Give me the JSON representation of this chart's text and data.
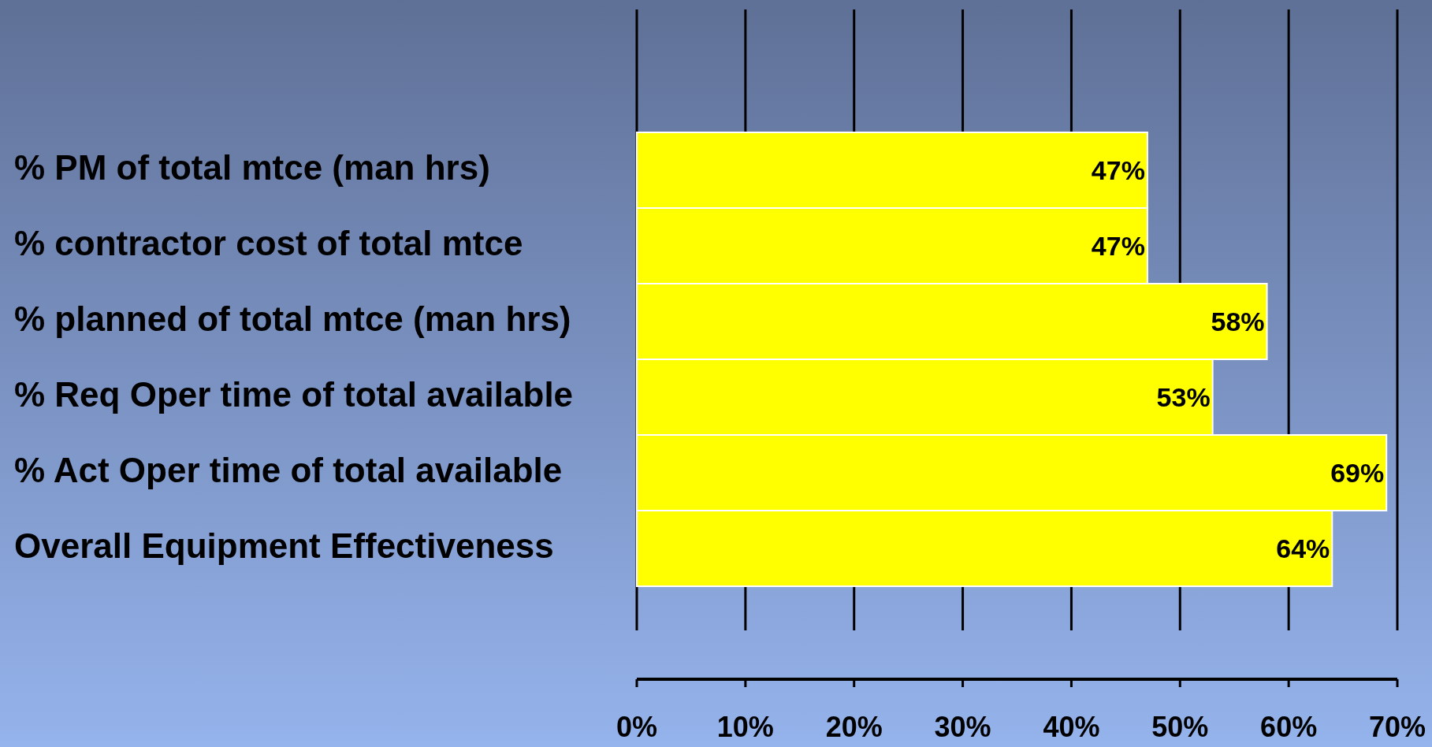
{
  "chart_data": {
    "type": "bar",
    "orientation": "horizontal",
    "categories": [
      "% PM of total mtce (man hrs)",
      "% contractor cost of total mtce",
      "% planned of total mtce (man hrs)",
      "% Req Oper time of total available",
      "% Act Oper time of total available",
      "Overall Equipment Effectiveness"
    ],
    "values": [
      47,
      47,
      58,
      53,
      69,
      64
    ],
    "value_labels": [
      "47%",
      "47%",
      "58%",
      "53%",
      "69%",
      "64%"
    ],
    "color": "#ffff00",
    "xlim": [
      0,
      70
    ],
    "xticks": [
      {
        "value": 0,
        "label": "0%"
      },
      {
        "value": 10,
        "label": "10%"
      },
      {
        "value": 20,
        "label": "20%"
      },
      {
        "value": 30,
        "label": "30%"
      },
      {
        "value": 40,
        "label": "40%"
      },
      {
        "value": 50,
        "label": "50%"
      },
      {
        "value": 60,
        "label": "60%"
      },
      {
        "value": 70,
        "label": "70%"
      }
    ],
    "grid": "x"
  }
}
